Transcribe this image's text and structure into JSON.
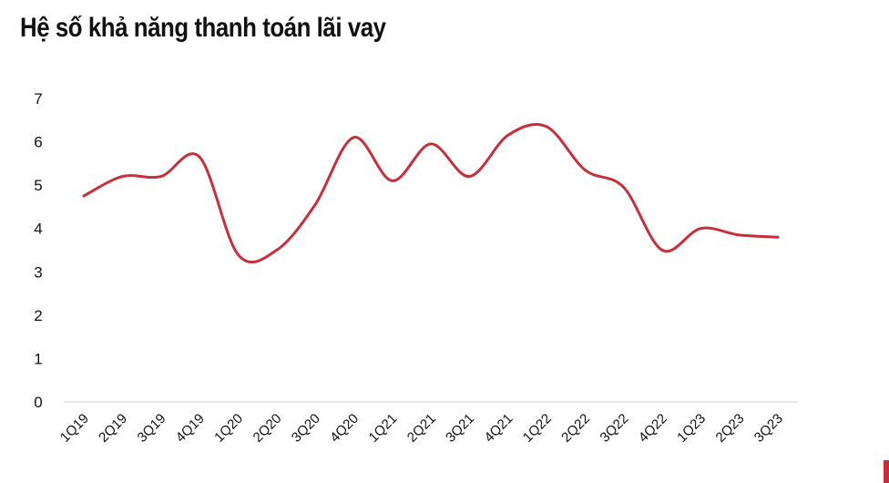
{
  "chart_data": {
    "type": "line",
    "title": "Hệ số khả năng thanh toán lãi vay",
    "categories": [
      "1Q19",
      "2Q19",
      "3Q19",
      "4Q19",
      "1Q20",
      "2Q20",
      "3Q20",
      "4Q20",
      "1Q21",
      "2Q21",
      "3Q21",
      "4Q21",
      "1Q22",
      "2Q22",
      "3Q22",
      "4Q22",
      "1Q23",
      "2Q23",
      "3Q23"
    ],
    "series": [
      {
        "values": [
          4.75,
          5.2,
          5.2,
          5.65,
          3.4,
          3.5,
          4.55,
          6.1,
          5.1,
          5.95,
          5.2,
          6.15,
          6.35,
          5.35,
          4.95,
          3.5,
          4.0,
          3.85,
          3.8
        ]
      }
    ],
    "yticks": [
      "0",
      "1",
      "2",
      "3",
      "4",
      "5",
      "6",
      "7"
    ],
    "ylim": [
      0,
      7
    ],
    "line_color": "#c5303b",
    "grid": false
  }
}
